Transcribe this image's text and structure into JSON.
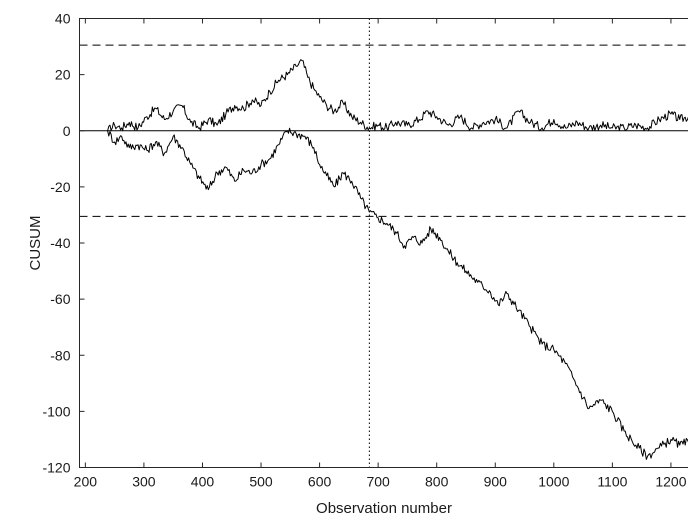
{
  "chart_data": {
    "type": "line",
    "title": "",
    "xlabel": "Observation number",
    "ylabel": "CUSUM",
    "xlim": [
      190,
      1230
    ],
    "ylim": [
      -120,
      40
    ],
    "x_ticks": [
      200,
      300,
      400,
      500,
      600,
      700,
      800,
      900,
      1000,
      1100,
      1200
    ],
    "y_ticks": [
      40,
      20,
      0,
      -20,
      -40,
      -60,
      -80,
      -100,
      -120
    ],
    "grid": false,
    "legend": "none",
    "reference_lines": {
      "horizontal_solid": [
        0
      ],
      "horizontal_dashed": [
        30.5,
        -30.5
      ],
      "vertical_dotted": [
        685
      ]
    },
    "series": [
      {
        "x": [
          238,
          250,
          262,
          275,
          290,
          305,
          320,
          335,
          350,
          365,
          380,
          395,
          410,
          425,
          440,
          455,
          470,
          485,
          500,
          515,
          530,
          545,
          560,
          570,
          580,
          590,
          600,
          612,
          625,
          640,
          655,
          670,
          685,
          700,
          715,
          730,
          750,
          770,
          785,
          800,
          820,
          840,
          860,
          880,
          900,
          920,
          940,
          960,
          980,
          1000,
          1020,
          1040,
          1060,
          1080,
          1100,
          1120,
          1140,
          1160,
          1180,
          1200,
          1215,
          1230
        ],
        "values": [
          0,
          2,
          1,
          3,
          1,
          5,
          8,
          4,
          7,
          9,
          3,
          1,
          4,
          2,
          6,
          9,
          8,
          11,
          9,
          14,
          18,
          20,
          23,
          25,
          19,
          15,
          12,
          9,
          7,
          10,
          5,
          3,
          1,
          2,
          1,
          3,
          2,
          4,
          7,
          5,
          2,
          5,
          1,
          3,
          4,
          1,
          7,
          3,
          1,
          4,
          1,
          3,
          1,
          2,
          1,
          1,
          2,
          1,
          4,
          6,
          4,
          5
        ]
      },
      {
        "x": [
          238,
          250,
          262,
          275,
          290,
          305,
          320,
          335,
          350,
          365,
          380,
          395,
          410,
          425,
          440,
          455,
          470,
          485,
          500,
          515,
          530,
          545,
          560,
          575,
          590,
          600,
          612,
          625,
          640,
          655,
          670,
          685,
          700,
          715,
          730,
          745,
          760,
          775,
          790,
          805,
          820,
          835,
          850,
          870,
          890,
          905,
          920,
          940,
          960,
          980,
          1000,
          1020,
          1040,
          1060,
          1080,
          1100,
          1120,
          1140,
          1160,
          1180,
          1200,
          1215,
          1230
        ],
        "values": [
          0,
          -4,
          -2,
          -6,
          -5,
          -7,
          -4,
          -8,
          -2,
          -6,
          -12,
          -17,
          -21,
          -15,
          -13,
          -18,
          -14,
          -15,
          -12,
          -10,
          -5,
          0,
          -1,
          -2,
          -6,
          -12,
          -16,
          -20,
          -15,
          -18,
          -24,
          -29,
          -31,
          -33,
          -36,
          -41,
          -38,
          -40,
          -35,
          -38,
          -43,
          -47,
          -50,
          -54,
          -57,
          -62,
          -58,
          -64,
          -70,
          -76,
          -78,
          -83,
          -91,
          -99,
          -96,
          -100,
          -107,
          -112,
          -116,
          -113,
          -110,
          -112,
          -111
        ]
      }
    ]
  }
}
